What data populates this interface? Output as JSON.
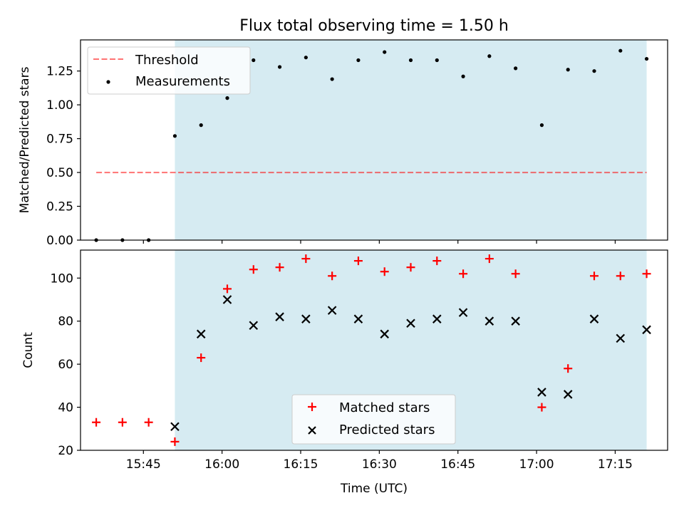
{
  "title": "Flux total observing time = 1.50 h",
  "colors": {
    "shade": "#add8e6",
    "threshold": "#ff0000",
    "measurement": "#000000",
    "matched": "#ff0000",
    "predicted": "#000000"
  },
  "chart_data": [
    {
      "type": "scatter",
      "panel": "top",
      "ylabel": "Matched/Predicted stars",
      "ylim": [
        0,
        1.48
      ],
      "yticks": [
        "0.00",
        "0.25",
        "0.50",
        "0.75",
        "1.00",
        "1.25"
      ],
      "xlim": [
        "15:33",
        "17:25"
      ],
      "xticks": [
        "15:45",
        "16:00",
        "16:15",
        "16:30",
        "16:45",
        "17:00",
        "17:15"
      ],
      "tick_labels_visible": false,
      "shaded_span": [
        "15:51",
        "17:21"
      ],
      "threshold": {
        "name": "Threshold",
        "value": 0.5,
        "x_range": [
          "15:36",
          "17:21"
        ]
      },
      "series": [
        {
          "name": "Measurements",
          "points": [
            [
              "15:36",
              0.0
            ],
            [
              "15:41",
              0.0
            ],
            [
              "15:46",
              0.0
            ],
            [
              "15:51",
              0.77
            ],
            [
              "15:56",
              0.85
            ],
            [
              "16:01",
              1.05
            ],
            [
              "16:06",
              1.33
            ],
            [
              "16:11",
              1.28
            ],
            [
              "16:16",
              1.35
            ],
            [
              "16:21",
              1.19
            ],
            [
              "16:26",
              1.33
            ],
            [
              "16:31",
              1.39
            ],
            [
              "16:36",
              1.33
            ],
            [
              "16:41",
              1.33
            ],
            [
              "16:46",
              1.21
            ],
            [
              "16:51",
              1.36
            ],
            [
              "16:56",
              1.27
            ],
            [
              "17:01",
              0.85
            ],
            [
              "17:06",
              1.26
            ],
            [
              "17:11",
              1.25
            ],
            [
              "17:16",
              1.4
            ],
            [
              "17:21",
              1.34
            ]
          ]
        }
      ],
      "legend": [
        "Threshold",
        "Measurements"
      ],
      "legend_position": "upper-left"
    },
    {
      "type": "scatter",
      "panel": "bottom",
      "xlabel": "Time (UTC)",
      "ylabel": "Count",
      "ylim": [
        20,
        113
      ],
      "yticks": [
        "20",
        "40",
        "60",
        "80",
        "100"
      ],
      "xlim": [
        "15:33",
        "17:25"
      ],
      "xticks": [
        "15:45",
        "16:00",
        "16:15",
        "16:30",
        "16:45",
        "17:00",
        "17:15"
      ],
      "shaded_span": [
        "15:51",
        "17:21"
      ],
      "series": [
        {
          "name": "Matched stars",
          "marker": "+",
          "points": [
            [
              "15:36",
              33
            ],
            [
              "15:41",
              33
            ],
            [
              "15:46",
              33
            ],
            [
              "15:51",
              24
            ],
            [
              "15:56",
              63
            ],
            [
              "16:01",
              95
            ],
            [
              "16:06",
              104
            ],
            [
              "16:11",
              105
            ],
            [
              "16:16",
              109
            ],
            [
              "16:21",
              101
            ],
            [
              "16:26",
              108
            ],
            [
              "16:31",
              103
            ],
            [
              "16:36",
              105
            ],
            [
              "16:41",
              108
            ],
            [
              "16:46",
              102
            ],
            [
              "16:51",
              109
            ],
            [
              "16:56",
              102
            ],
            [
              "17:01",
              40
            ],
            [
              "17:06",
              58
            ],
            [
              "17:11",
              101
            ],
            [
              "17:16",
              101
            ],
            [
              "17:21",
              102
            ]
          ]
        },
        {
          "name": "Predicted stars",
          "marker": "x",
          "points": [
            [
              "15:51",
              31
            ],
            [
              "15:56",
              74
            ],
            [
              "16:01",
              90
            ],
            [
              "16:06",
              78
            ],
            [
              "16:11",
              82
            ],
            [
              "16:16",
              81
            ],
            [
              "16:21",
              85
            ],
            [
              "16:26",
              81
            ],
            [
              "16:31",
              74
            ],
            [
              "16:36",
              79
            ],
            [
              "16:41",
              81
            ],
            [
              "16:46",
              84
            ],
            [
              "16:51",
              80
            ],
            [
              "16:56",
              80
            ],
            [
              "17:01",
              47
            ],
            [
              "17:06",
              46
            ],
            [
              "17:11",
              81
            ],
            [
              "17:16",
              72
            ],
            [
              "17:21",
              76
            ]
          ]
        }
      ],
      "legend": [
        "Matched stars",
        "Predicted stars"
      ],
      "legend_position": "lower-center"
    }
  ]
}
